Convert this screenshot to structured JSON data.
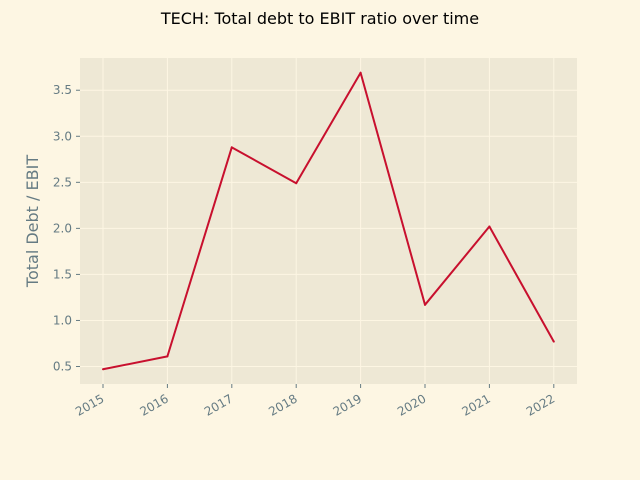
{
  "chart_data": {
    "type": "line",
    "title": "TECH: Total debt to EBIT ratio over time",
    "xlabel": "",
    "ylabel": "Total Debt / EBIT",
    "x": [
      "2015",
      "2016",
      "2017",
      "2018",
      "2019",
      "2020",
      "2021",
      "2022"
    ],
    "series": [
      {
        "values": [
          0.47,
          0.61,
          2.88,
          2.49,
          3.69,
          1.17,
          2.02,
          0.77
        ]
      }
    ],
    "yticks": [
      "0.5",
      "1.0",
      "1.5",
      "2.0",
      "2.5",
      "3.0",
      "3.5"
    ],
    "ylim": [
      0.31,
      3.85
    ],
    "grid": true,
    "colors": {
      "figure_background": "#fdf6e3",
      "plot_background": "#eee8d5",
      "line": "#c8102e",
      "grid": "#fdf6e3",
      "tick_text": "#657b83"
    }
  }
}
